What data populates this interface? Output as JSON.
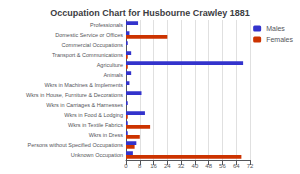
{
  "chart_data": {
    "type": "bar",
    "orientation": "horizontal",
    "title": "Occupation Chart for Husbourne Crawley 1881",
    "categories": [
      "Professionals",
      "Domestic Service or Offices",
      "Commercial Occupations",
      "Transport & Communications",
      "Agriculture",
      "Animals",
      "Wkrs in Machines & Implements",
      "Wkrs in House, Furniture & Decorations",
      "Wkrs in Carriages & Harnesses",
      "Wkrs in Food & Lodging",
      "Wkrs in Textile Fabrics",
      "Wkrs in Dress",
      "Persons without Specified Occupations",
      "Unknown Occupation"
    ],
    "series": [
      {
        "name": "Males",
        "color": "#3333cc",
        "values": [
          7,
          2,
          1,
          3,
          68,
          3,
          2,
          9,
          1,
          11,
          1,
          1,
          6,
          4
        ]
      },
      {
        "name": "Females",
        "color": "#cc3300",
        "values": [
          0,
          24,
          0,
          1,
          1,
          0,
          0,
          0,
          0,
          1,
          14,
          8,
          5,
          67
        ]
      }
    ],
    "xlim": [
      0,
      72
    ],
    "xticks": [
      0,
      8,
      16,
      24,
      32,
      40,
      48,
      56,
      64,
      72
    ],
    "grid": true,
    "legend": "upper right"
  }
}
